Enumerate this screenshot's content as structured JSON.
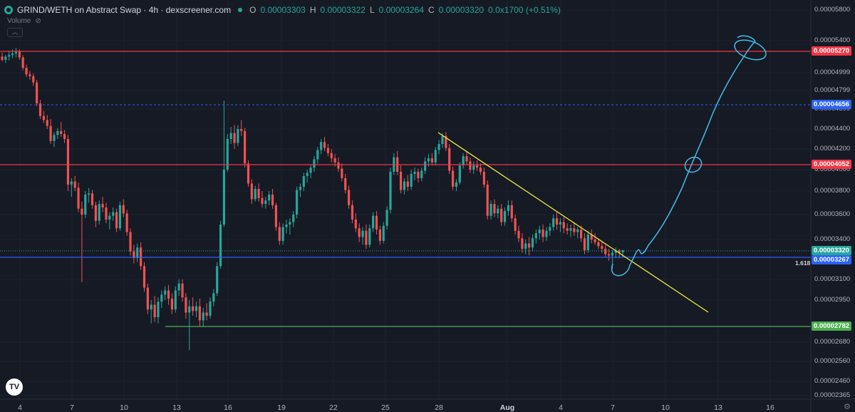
{
  "header": {
    "title": "GRIND/WETH on Abstract Swap · 4h · dexscreener.com",
    "open_label": "O",
    "open": "0.00003303",
    "high_label": "H",
    "high": "0.00003322",
    "low_label": "L",
    "low": "0.00003264",
    "close_label": "C",
    "close": "0.00003320",
    "change": "0.0x1700 (+0.51%)",
    "volume_label": "Volume"
  },
  "colors": {
    "background": "#161a25",
    "up": "#26a69a",
    "down": "#ef5350",
    "resistance": "#f23645",
    "support": "#4caf50",
    "fib_blue": "#2962ff",
    "trendline": "#f5e93c",
    "drawing": "#42bfe8"
  },
  "y_axis": {
    "ticks": [
      "0.00005800",
      "0.00005400",
      "0.00004999",
      "0.00004799",
      "0.00004599",
      "0.00004400",
      "0.00004200",
      "0.00004000",
      "0.00003800",
      "0.00003600",
      "0.00003400",
      "0.00003100",
      "0.00002950",
      "0.00002680",
      "0.00002560",
      "0.00002460",
      "0.00002365"
    ]
  },
  "price_tags": [
    {
      "label": "0.00005270",
      "color": "#f23645"
    },
    {
      "label": "0.00004656",
      "color": "#2962ff"
    },
    {
      "label": "0.00004052",
      "color": "#f23645"
    },
    {
      "label": "0.00003320",
      "color": "#26a69a"
    },
    {
      "label": "0.00003267",
      "color": "#2962ff"
    },
    {
      "label": "0.00002782",
      "color": "#4caf50"
    }
  ],
  "fib_label": "1.618",
  "x_axis": {
    "labels": [
      "4",
      "7",
      "10",
      "13",
      "16",
      "19",
      "22",
      "25",
      "28",
      "Aug",
      "4",
      "7",
      "10",
      "13",
      "16"
    ]
  },
  "chart_data": {
    "type": "candlestick",
    "timeframe": "4h",
    "candles": [
      [
        5.2e-05,
        5.25e-05,
        5.14e-05,
        5.16e-05
      ],
      [
        5.16e-05,
        5.22e-05,
        5.12e-05,
        5.2e-05
      ],
      [
        5.2e-05,
        5.27e-05,
        5.15e-05,
        5.22e-05
      ],
      [
        5.22e-05,
        5.29e-05,
        5.18e-05,
        5.24e-05
      ],
      [
        5.24e-05,
        5.31e-05,
        5.19e-05,
        5.26e-05
      ],
      [
        5.26e-05,
        5.29e-05,
        5.16e-05,
        5.19e-05
      ],
      [
        5.19e-05,
        5.22e-05,
        5.03e-05,
        5.06e-05
      ],
      [
        5.06e-05,
        5.1e-05,
        4.95e-05,
        4.98e-05
      ],
      [
        4.98e-05,
        5.02e-05,
        4.92e-05,
        4.96e-05
      ],
      [
        4.96e-05,
        4.99e-05,
        4.85e-05,
        4.89e-05
      ],
      [
        4.89e-05,
        4.92e-05,
        4.63e-05,
        4.66e-05
      ],
      [
        4.66e-05,
        4.7e-05,
        4.5e-05,
        4.53e-05
      ],
      [
        4.53e-05,
        4.58e-05,
        4.46e-05,
        4.49e-05
      ],
      [
        4.49e-05,
        4.54e-05,
        4.4e-05,
        4.43e-05
      ],
      [
        4.43e-05,
        4.5e-05,
        4.25e-05,
        4.28e-05
      ],
      [
        4.28e-05,
        4.37e-05,
        4.22e-05,
        4.34e-05
      ],
      [
        4.34e-05,
        4.41e-05,
        4.3e-05,
        4.38e-05
      ],
      [
        4.38e-05,
        4.47e-05,
        4.32e-05,
        4.35e-05
      ],
      [
        4.35e-05,
        4.39e-05,
        4.26e-05,
        4.3e-05
      ],
      [
        4.3e-05,
        4.34e-05,
        3.8e-05,
        3.86e-05
      ],
      [
        3.86e-05,
        3.92e-05,
        3.75e-05,
        3.89e-05
      ],
      [
        3.89e-05,
        3.94e-05,
        3.8e-05,
        3.83e-05
      ],
      [
        3.83e-05,
        3.88e-05,
        3.62e-05,
        3.65e-05
      ],
      [
        3.65e-05,
        3.71e-05,
        3.08e-05,
        3.6e-05
      ],
      [
        3.6e-05,
        3.8e-05,
        3.57e-05,
        3.77e-05
      ],
      [
        3.77e-05,
        3.83e-05,
        3.7e-05,
        3.78e-05
      ],
      [
        3.78e-05,
        3.81e-05,
        3.65e-05,
        3.68e-05
      ],
      [
        3.68e-05,
        3.71e-05,
        3.5e-05,
        3.55e-05
      ],
      [
        3.55e-05,
        3.72e-05,
        3.52e-05,
        3.69e-05
      ],
      [
        3.69e-05,
        3.75e-05,
        3.62e-05,
        3.66e-05
      ],
      [
        3.66e-05,
        3.7e-05,
        3.53e-05,
        3.56e-05
      ],
      [
        3.56e-05,
        3.62e-05,
        3.48e-05,
        3.59e-05
      ],
      [
        3.59e-05,
        3.66e-05,
        3.55e-05,
        3.62e-05
      ],
      [
        3.62e-05,
        3.65e-05,
        3.46e-05,
        3.49e-05
      ],
      [
        3.49e-05,
        3.71e-05,
        3.47e-05,
        3.68e-05
      ],
      [
        3.68e-05,
        3.73e-05,
        3.58e-05,
        3.61e-05
      ],
      [
        3.61e-05,
        3.64e-05,
        3.43e-05,
        3.46e-05
      ],
      [
        3.46e-05,
        3.49e-05,
        3.28e-05,
        3.31e-05
      ],
      [
        3.31e-05,
        3.36e-05,
        3.22e-05,
        3.26e-05
      ],
      [
        3.26e-05,
        3.37e-05,
        3.23e-05,
        3.34e-05
      ],
      [
        3.34e-05,
        3.38e-05,
        3.17e-05,
        3.2e-05
      ],
      [
        3.2e-05,
        3.23e-05,
        3.01e-05,
        3.04e-05
      ],
      [
        3.04e-05,
        3.07e-05,
        2.86e-05,
        2.89e-05
      ],
      [
        2.89e-05,
        2.95e-05,
        2.8e-05,
        2.92e-05
      ],
      [
        2.92e-05,
        2.98e-05,
        2.81e-05,
        2.84e-05
      ],
      [
        2.84e-05,
        2.97e-05,
        2.8e-05,
        2.94e-05
      ],
      [
        2.94e-05,
        3.02e-05,
        2.9e-05,
        2.99e-05
      ],
      [
        2.99e-05,
        3.05e-05,
        2.95e-05,
        3.02e-05
      ],
      [
        3.02e-05,
        3.06e-05,
        2.92e-05,
        2.96e-05
      ],
      [
        2.96e-05,
        3e-05,
        2.86e-05,
        2.89e-05
      ],
      [
        2.89e-05,
        3.05e-05,
        2.87e-05,
        3.02e-05
      ],
      [
        3.02e-05,
        3.1e-05,
        2.98e-05,
        3.07e-05
      ],
      [
        3.07e-05,
        3.1e-05,
        2.94e-05,
        2.97e-05
      ],
      [
        2.97e-05,
        3e-05,
        2.83e-05,
        2.87e-05
      ],
      [
        2.87e-05,
        2.95e-05,
        2.63e-05,
        2.91e-05
      ],
      [
        2.91e-05,
        2.97e-05,
        2.85e-05,
        2.88e-05
      ],
      [
        2.88e-05,
        2.94e-05,
        2.84e-05,
        2.91e-05
      ],
      [
        2.91e-05,
        2.96e-05,
        2.78e-05,
        2.82e-05
      ],
      [
        2.82e-05,
        2.9e-05,
        2.78e-05,
        2.87e-05
      ],
      [
        2.87e-05,
        2.93e-05,
        2.82e-05,
        2.85e-05
      ],
      [
        2.85e-05,
        2.97e-05,
        2.83e-05,
        2.94e-05
      ],
      [
        2.94e-05,
        3.03e-05,
        2.91e-05,
        3e-05
      ],
      [
        3e-05,
        3.23e-05,
        2.98e-05,
        3.2e-05
      ],
      [
        3.2e-05,
        3.55e-05,
        3.18e-05,
        3.52e-05
      ],
      [
        3.52e-05,
        4.69e-05,
        3.5e-05,
        4e-05
      ],
      [
        4e-05,
        4.35e-05,
        3.98e-05,
        4.3e-05
      ],
      [
        4.3e-05,
        4.42e-05,
        4.25e-05,
        4.36e-05
      ],
      [
        4.36e-05,
        4.44e-05,
        4.2e-05,
        4.26e-05
      ],
      [
        4.26e-05,
        4.44e-05,
        4.23e-05,
        4.4e-05
      ],
      [
        4.4e-05,
        4.49e-05,
        4.33e-05,
        4.38e-05
      ],
      [
        4.38e-05,
        4.41e-05,
        4.02e-05,
        4.06e-05
      ],
      [
        4.06e-05,
        4.09e-05,
        3.84e-05,
        3.87e-05
      ],
      [
        3.87e-05,
        3.91e-05,
        3.69e-05,
        3.73e-05
      ],
      [
        3.73e-05,
        3.85e-05,
        3.71e-05,
        3.82e-05
      ],
      [
        3.82e-05,
        3.87e-05,
        3.71e-05,
        3.74e-05
      ],
      [
        3.74e-05,
        3.8e-05,
        3.66e-05,
        3.69e-05
      ],
      [
        3.69e-05,
        3.75e-05,
        3.65e-05,
        3.72e-05
      ],
      [
        3.72e-05,
        3.8e-05,
        3.68e-05,
        3.77e-05
      ],
      [
        3.77e-05,
        3.82e-05,
        3.65e-05,
        3.68e-05
      ],
      [
        3.68e-05,
        3.7e-05,
        3.47e-05,
        3.5e-05
      ],
      [
        3.5e-05,
        3.54e-05,
        3.36e-05,
        3.39e-05
      ],
      [
        3.39e-05,
        3.53e-05,
        3.36e-05,
        3.5e-05
      ],
      [
        3.5e-05,
        3.56e-05,
        3.45e-05,
        3.52e-05
      ],
      [
        3.52e-05,
        3.57e-05,
        3.44e-05,
        3.54e-05
      ],
      [
        3.54e-05,
        3.63e-05,
        3.5e-05,
        3.6e-05
      ],
      [
        3.6e-05,
        3.84e-05,
        3.57e-05,
        3.81e-05
      ],
      [
        3.81e-05,
        3.87e-05,
        3.75e-05,
        3.84e-05
      ],
      [
        3.84e-05,
        3.97e-05,
        3.8e-05,
        3.94e-05
      ],
      [
        3.94e-05,
        4e-05,
        3.88e-05,
        3.97e-05
      ],
      [
        3.97e-05,
        4.05e-05,
        3.92e-05,
        4.02e-05
      ],
      [
        4.02e-05,
        4.13e-05,
        3.98e-05,
        4.1e-05
      ],
      [
        4.1e-05,
        4.22e-05,
        4.06e-05,
        4.19e-05
      ],
      [
        4.19e-05,
        4.3e-05,
        4.15e-05,
        4.27e-05
      ],
      [
        4.27e-05,
        4.32e-05,
        4.18e-05,
        4.21e-05
      ],
      [
        4.21e-05,
        4.25e-05,
        4.13e-05,
        4.16e-05
      ],
      [
        4.16e-05,
        4.2e-05,
        4.07e-05,
        4.11e-05
      ],
      [
        4.11e-05,
        4.15e-05,
        4.03e-05,
        4.07e-05
      ],
      [
        4.07e-05,
        4.12e-05,
        3.98e-05,
        4.01e-05
      ],
      [
        4.01e-05,
        4.06e-05,
        3.89e-05,
        3.92e-05
      ],
      [
        3.92e-05,
        3.96e-05,
        3.78e-05,
        3.81e-05
      ],
      [
        3.81e-05,
        3.85e-05,
        3.65e-05,
        3.68e-05
      ],
      [
        3.68e-05,
        3.72e-05,
        3.53e-05,
        3.56e-05
      ],
      [
        3.56e-05,
        3.61e-05,
        3.46e-05,
        3.49e-05
      ],
      [
        3.49e-05,
        3.53e-05,
        3.38e-05,
        3.42e-05
      ],
      [
        3.42e-05,
        3.5e-05,
        3.36e-05,
        3.47e-05
      ],
      [
        3.47e-05,
        3.52e-05,
        3.33e-05,
        3.36e-05
      ],
      [
        3.36e-05,
        3.52e-05,
        3.34e-05,
        3.49e-05
      ],
      [
        3.49e-05,
        3.62e-05,
        3.46e-05,
        3.59e-05
      ],
      [
        3.59e-05,
        3.63e-05,
        3.44e-05,
        3.48e-05
      ],
      [
        3.48e-05,
        3.51e-05,
        3.36e-05,
        3.39e-05
      ],
      [
        3.39e-05,
        3.54e-05,
        3.37e-05,
        3.51e-05
      ],
      [
        3.51e-05,
        3.67e-05,
        3.48e-05,
        3.64e-05
      ],
      [
        3.64e-05,
        4.02e-05,
        3.61e-05,
        3.98e-05
      ],
      [
        3.98e-05,
        4.16e-05,
        3.95e-05,
        4.12e-05
      ],
      [
        4.12e-05,
        4.18e-05,
        3.95e-05,
        3.98e-05
      ],
      [
        3.98e-05,
        4.04e-05,
        3.78e-05,
        3.81e-05
      ],
      [
        3.81e-05,
        3.92e-05,
        3.77e-05,
        3.89e-05
      ],
      [
        3.89e-05,
        3.95e-05,
        3.8e-05,
        3.84e-05
      ],
      [
        3.84e-05,
        4e-05,
        3.81e-05,
        3.96e-05
      ],
      [
        3.96e-05,
        4.02e-05,
        3.9e-05,
        3.98e-05
      ],
      [
        3.98e-05,
        4.01e-05,
        3.88e-05,
        3.92e-05
      ],
      [
        3.92e-05,
        4.02e-05,
        3.89e-05,
        3.99e-05
      ],
      [
        3.99e-05,
        4.12e-05,
        3.96e-05,
        4.08e-05
      ],
      [
        4.08e-05,
        4.15e-05,
        4.03e-05,
        4.11e-05
      ],
      [
        4.11e-05,
        4.16e-05,
        4.04e-05,
        4.07e-05
      ],
      [
        4.07e-05,
        4.22e-05,
        4.04e-05,
        4.19e-05
      ],
      [
        4.19e-05,
        4.29e-05,
        4.15e-05,
        4.25e-05
      ],
      [
        4.25e-05,
        4.36e-05,
        4.21e-05,
        4.33e-05
      ],
      [
        4.33e-05,
        4.37e-05,
        4.18e-05,
        4.21e-05
      ],
      [
        4.21e-05,
        4.25e-05,
        3.96e-05,
        3.99e-05
      ],
      [
        3.99e-05,
        4.03e-05,
        3.81e-05,
        3.84e-05
      ],
      [
        3.84e-05,
        3.91e-05,
        3.8e-05,
        3.88e-05
      ],
      [
        3.88e-05,
        4.07e-05,
        3.86e-05,
        4.04e-05
      ],
      [
        4.04e-05,
        4.16e-05,
        4.01e-05,
        4.13e-05
      ],
      [
        4.13e-05,
        4.18e-05,
        4.05e-05,
        4.08e-05
      ],
      [
        4.08e-05,
        4.12e-05,
        3.97e-05,
        4e-05
      ],
      [
        4e-05,
        4.08e-05,
        3.96e-05,
        4.04e-05
      ],
      [
        4.04e-05,
        4.09e-05,
        3.99e-05,
        4.02e-05
      ],
      [
        4.02e-05,
        4.06e-05,
        3.95e-05,
        3.98e-05
      ],
      [
        3.98e-05,
        4.02e-05,
        3.83e-05,
        3.86e-05
      ],
      [
        3.86e-05,
        3.9e-05,
        3.56e-05,
        3.59e-05
      ],
      [
        3.59e-05,
        3.72e-05,
        3.56e-05,
        3.69e-05
      ],
      [
        3.69e-05,
        3.73e-05,
        3.58e-05,
        3.61e-05
      ],
      [
        3.61e-05,
        3.68e-05,
        3.57e-05,
        3.65e-05
      ],
      [
        3.65e-05,
        3.69e-05,
        3.51e-05,
        3.54e-05
      ],
      [
        3.54e-05,
        3.66e-05,
        3.51e-05,
        3.63e-05
      ],
      [
        3.63e-05,
        3.72e-05,
        3.59e-05,
        3.68e-05
      ],
      [
        3.68e-05,
        3.72e-05,
        3.54e-05,
        3.57e-05
      ],
      [
        3.57e-05,
        3.6e-05,
        3.44e-05,
        3.47e-05
      ],
      [
        3.47e-05,
        3.51e-05,
        3.38e-05,
        3.41e-05
      ],
      [
        3.41e-05,
        3.45e-05,
        3.3e-05,
        3.33e-05
      ],
      [
        3.33e-05,
        3.4e-05,
        3.29e-05,
        3.37e-05
      ],
      [
        3.37e-05,
        3.42e-05,
        3.28e-05,
        3.34e-05
      ],
      [
        3.34e-05,
        3.44e-05,
        3.31e-05,
        3.41e-05
      ],
      [
        3.41e-05,
        3.48e-05,
        3.37e-05,
        3.45e-05
      ],
      [
        3.45e-05,
        3.51e-05,
        3.4e-05,
        3.48e-05
      ],
      [
        3.48e-05,
        3.52e-05,
        3.38e-05,
        3.42e-05
      ],
      [
        3.42e-05,
        3.5e-05,
        3.39e-05,
        3.47e-05
      ],
      [
        3.47e-05,
        3.53e-05,
        3.43e-05,
        3.5e-05
      ],
      [
        3.5e-05,
        3.6e-05,
        3.47e-05,
        3.57e-05
      ],
      [
        3.57e-05,
        3.62e-05,
        3.48e-05,
        3.52e-05
      ],
      [
        3.52e-05,
        3.57e-05,
        3.46e-05,
        3.54e-05
      ],
      [
        3.54e-05,
        3.58e-05,
        3.45e-05,
        3.49e-05
      ],
      [
        3.49e-05,
        3.53e-05,
        3.44e-05,
        3.47e-05
      ],
      [
        3.47e-05,
        3.52e-05,
        3.42e-05,
        3.49e-05
      ],
      [
        3.49e-05,
        3.54e-05,
        3.43e-05,
        3.46e-05
      ],
      [
        3.46e-05,
        3.5e-05,
        3.41e-05,
        3.48e-05
      ],
      [
        3.48e-05,
        3.51e-05,
        3.38e-05,
        3.41e-05
      ],
      [
        3.41e-05,
        3.45e-05,
        3.29e-05,
        3.32e-05
      ],
      [
        3.32e-05,
        3.47e-05,
        3.3e-05,
        3.44e-05
      ],
      [
        3.44e-05,
        3.48e-05,
        3.37e-05,
        3.4e-05
      ],
      [
        3.4e-05,
        3.45e-05,
        3.36e-05,
        3.38e-05
      ],
      [
        3.38e-05,
        3.41e-05,
        3.33e-05,
        3.35e-05
      ],
      [
        3.35e-05,
        3.39e-05,
        3.3e-05,
        3.33e-05
      ],
      [
        3.33e-05,
        3.36e-05,
        3.27e-05,
        3.29e-05
      ],
      [
        3.29e-05,
        3.33e-05,
        3.24e-05,
        3.28e-05
      ],
      [
        3.28e-05,
        3.32e-05,
        3.18e-05,
        3.3e-05
      ],
      [
        3.3e-05,
        3.34e-05,
        3.26e-05,
        3.32e-05
      ],
      [
        3.32e-05,
        3.33e-05,
        3.26e-05,
        3.3e-05
      ],
      [
        3.303e-05,
        3.322e-05,
        3.264e-05,
        3.32e-05
      ]
    ],
    "levels": [
      {
        "name": "resistance-top",
        "price": 5.27e-05
      },
      {
        "name": "fib-dashed",
        "price": 4.656e-05
      },
      {
        "name": "resistance-mid",
        "price": 4.052e-05
      },
      {
        "name": "fib-1.618",
        "price": 3.267e-05
      },
      {
        "name": "support",
        "price": 2.782e-05
      }
    ]
  }
}
